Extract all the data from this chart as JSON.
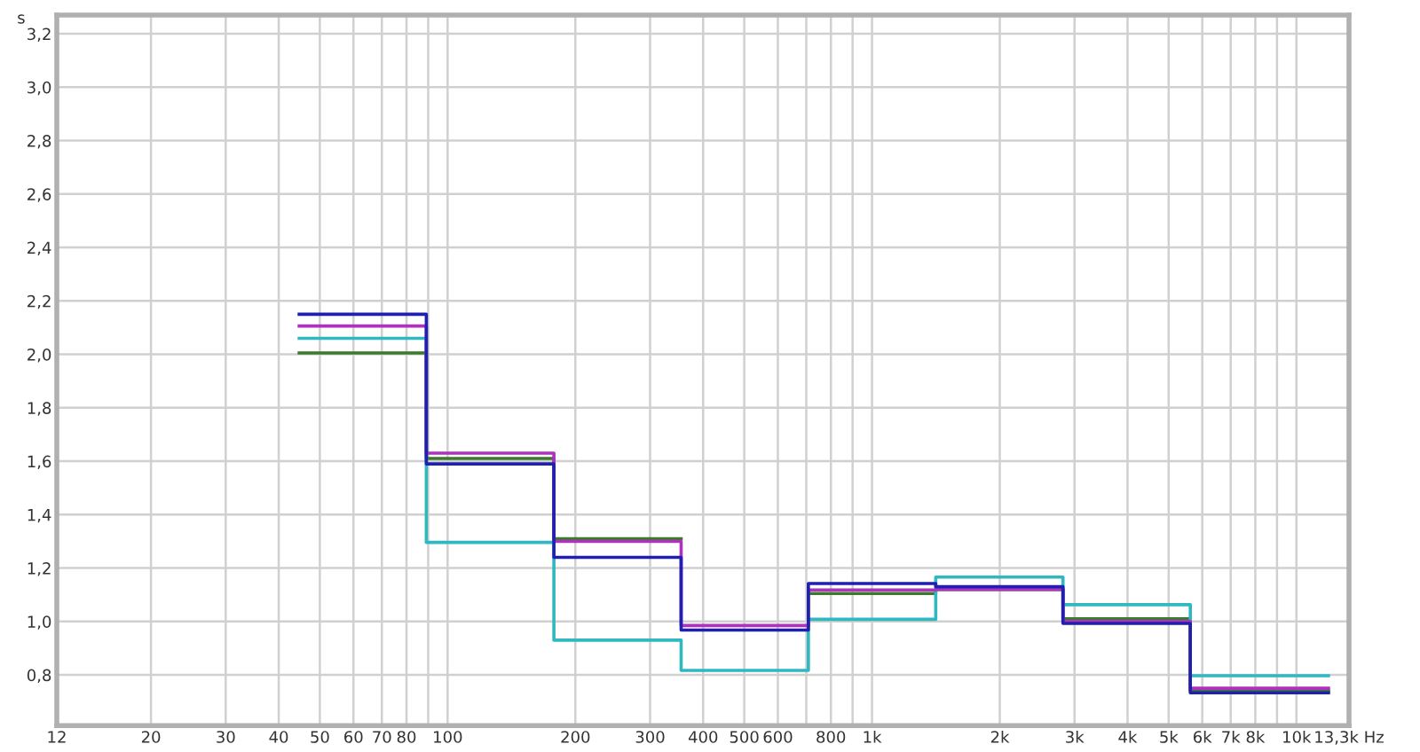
{
  "chart_data": {
    "type": "step",
    "x": [
      44.7,
      89.1,
      178,
      355,
      708,
      1413,
      2818,
      5623,
      11900
    ],
    "series": [
      {
        "color": "#3a7a2a",
        "values": [
          2.005,
          1.61,
          1.31,
          null,
          1.105,
          1.12,
          1.01,
          0.74,
          0.74
        ]
      },
      {
        "color": "#30b8c0",
        "values": [
          2.06,
          1.296,
          0.93,
          0.817,
          1.008,
          1.166,
          1.063,
          0.797,
          0.797
        ]
      },
      {
        "color": "#b030c0",
        "values": [
          2.106,
          1.63,
          1.3,
          0.985,
          1.118,
          1.12,
          1.0,
          0.75,
          0.75
        ]
      },
      {
        "color": "#2020b0",
        "values": [
          2.15,
          1.59,
          1.24,
          0.968,
          1.142,
          1.13,
          0.993,
          0.733,
          0.733
        ]
      }
    ],
    "ylabel": "s",
    "log": "x",
    "xlim": [
      12,
      13300
    ],
    "xticks": [
      12,
      20,
      30,
      40,
      50,
      60,
      70,
      80,
      {
        "value": 90,
        "label": null
      },
      100,
      200,
      300,
      400,
      500,
      600,
      {
        "value": 700,
        "label": null
      },
      800,
      {
        "value": 900,
        "label": null
      },
      {
        "value": 1000,
        "label": "1k"
      },
      {
        "value": 2000,
        "label": "2k"
      },
      {
        "value": 3000,
        "label": "3k"
      },
      {
        "value": 4000,
        "label": "4k"
      },
      {
        "value": 5000,
        "label": "5k"
      },
      {
        "value": 6000,
        "label": "6k"
      },
      {
        "value": 7000,
        "label": "7k"
      },
      {
        "value": 8000,
        "label": "8k"
      },
      {
        "value": 9000,
        "label": null
      },
      {
        "value": 10000,
        "label": "10k"
      },
      {
        "value": 13300,
        "label": "13,3k Hz"
      }
    ],
    "ylim": [
      0.61,
      3.27
    ],
    "yticks": [
      {
        "value": 0.8,
        "label": "0,8"
      },
      {
        "value": 1.0,
        "label": "1,0"
      },
      {
        "value": 1.2,
        "label": "1,2"
      },
      {
        "value": 1.4,
        "label": "1,4"
      },
      {
        "value": 1.6,
        "label": "1,6"
      },
      {
        "value": 1.8,
        "label": "1,8"
      },
      {
        "value": 2.0,
        "label": "2,0"
      },
      {
        "value": 2.2,
        "label": "2,2"
      },
      {
        "value": 2.4,
        "label": "2,4"
      },
      {
        "value": 2.6,
        "label": "2,6"
      },
      {
        "value": 2.8,
        "label": "2,8"
      },
      {
        "value": 3.0,
        "label": "3,0"
      },
      {
        "value": 3.2,
        "label": "3,2"
      }
    ],
    "grid": true,
    "line_style": "solid"
  }
}
